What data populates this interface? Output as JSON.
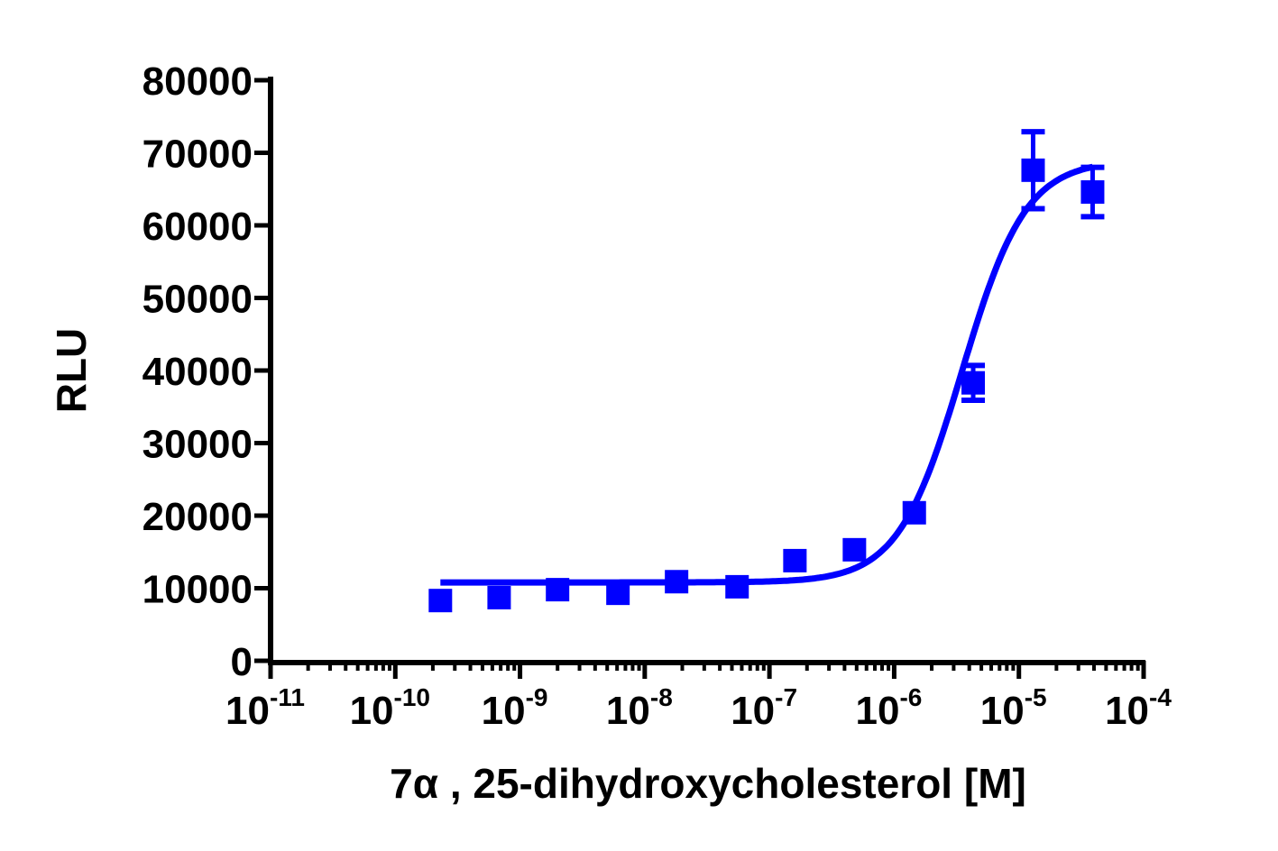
{
  "chart_data": {
    "type": "scatter",
    "title": "",
    "xlabel": "7α , 25-dihydroxycholesterol [M]",
    "ylabel": "RLU",
    "x_scale": "log",
    "xlim": [
      1e-11,
      0.0001
    ],
    "ylim": [
      0,
      80000
    ],
    "grid": false,
    "color": "#0000ff",
    "x_ticks": [
      {
        "base": "10",
        "exp": "-11",
        "value": 1e-11
      },
      {
        "base": "10",
        "exp": "-10",
        "value": 1e-10
      },
      {
        "base": "10",
        "exp": "-9",
        "value": 1e-09
      },
      {
        "base": "10",
        "exp": "-8",
        "value": 1e-08
      },
      {
        "base": "10",
        "exp": "-7",
        "value": 1e-07
      },
      {
        "base": "10",
        "exp": "-6",
        "value": 1e-06
      },
      {
        "base": "10",
        "exp": "-5",
        "value": 1e-05
      },
      {
        "base": "10",
        "exp": "-4",
        "value": 0.0001
      }
    ],
    "y_ticks": [
      "0",
      "10000",
      "20000",
      "30000",
      "40000",
      "50000",
      "60000",
      "70000",
      "80000"
    ],
    "points": [
      {
        "x": 2.3e-10,
        "y": 8300,
        "err": 0
      },
      {
        "x": 6.8e-10,
        "y": 8700,
        "err": 0
      },
      {
        "x": 2e-09,
        "y": 9800,
        "err": 0
      },
      {
        "x": 6.1e-09,
        "y": 9300,
        "err": 0
      },
      {
        "x": 1.8e-08,
        "y": 10900,
        "err": 0
      },
      {
        "x": 5.5e-08,
        "y": 10200,
        "err": 0
      },
      {
        "x": 1.6e-07,
        "y": 13800,
        "err": 0
      },
      {
        "x": 4.8e-07,
        "y": 15300,
        "err": 0
      },
      {
        "x": 1.45e-06,
        "y": 20400,
        "err": 0
      },
      {
        "x": 4.3e-06,
        "y": 38300,
        "err": 2400
      },
      {
        "x": 1.3e-05,
        "y": 67600,
        "err": 5300
      },
      {
        "x": 3.9e-05,
        "y": 64600,
        "err": 3400
      }
    ],
    "fit": {
      "model": "sigmoidal dose-response",
      "bottom": 10800,
      "top": 69000,
      "ec50": 3.5e-06,
      "hill": 1.7,
      "x_range": [
        2.3e-10,
        3.9e-05
      ]
    }
  }
}
